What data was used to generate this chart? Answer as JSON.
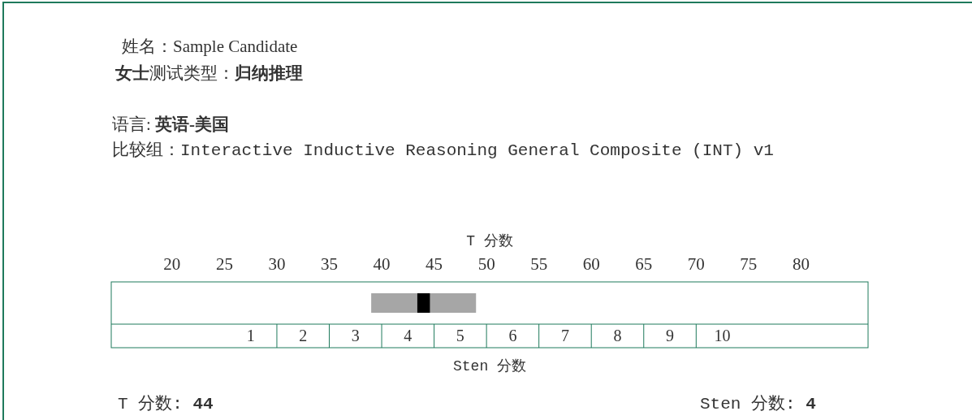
{
  "chart_data": {
    "type": "bar",
    "orientation": "horizontal",
    "categories": [
      null
    ],
    "series": [
      {
        "color": "#a6a6a6",
        "base": [
          39
        ],
        "values": [
          10
        ]
      },
      {
        "color": "#000000",
        "base": [
          43.4
        ],
        "values": [
          1.2
        ]
      }
    ],
    "xlim": [
      14.2,
      86.4
    ],
    "xticks": [
      20,
      25,
      30,
      35,
      40,
      45,
      50,
      55,
      60,
      65,
      70,
      75,
      80
    ],
    "xlabel": "T 分数",
    "x2lim": [
      -1.66,
      12.78
    ],
    "x2ticks": [
      1,
      2,
      3,
      4,
      5,
      6,
      7,
      8,
      9,
      10
    ],
    "ref_lines": [
      {
        "axis": "x",
        "value": 30,
        "color": "#1f7a5c"
      },
      {
        "axis": "x",
        "value": 35,
        "color": "#1f7a5c"
      },
      {
        "axis": "x",
        "value": 40,
        "color": "#1f7a5c"
      },
      {
        "axis": "x",
        "value": 45,
        "color": "#1f7a5c"
      },
      {
        "axis": "x",
        "value": 50,
        "color": "#1f7a5c"
      },
      {
        "axis": "x",
        "value": 55,
        "color": "#1f7a5c"
      },
      {
        "axis": "x",
        "value": 60,
        "color": "#1f7a5c"
      },
      {
        "axis": "x",
        "value": 65,
        "color": "#1f7a5c"
      },
      {
        "axis": "x",
        "value": 70,
        "color": "#1f7a5c"
      }
    ],
    "x2label": "Sten 分数",
    "annotations": [
      "姓名：Sample Candidate",
      "**女士**测试类型：**归纳推理**",
      "语言: **英语-美国**",
      "比较组：Interactive Inductive Reasoning General Composite (INT) v1",
      "T 分数: **44**",
      "Sten 分数: **4**"
    ]
  }
}
